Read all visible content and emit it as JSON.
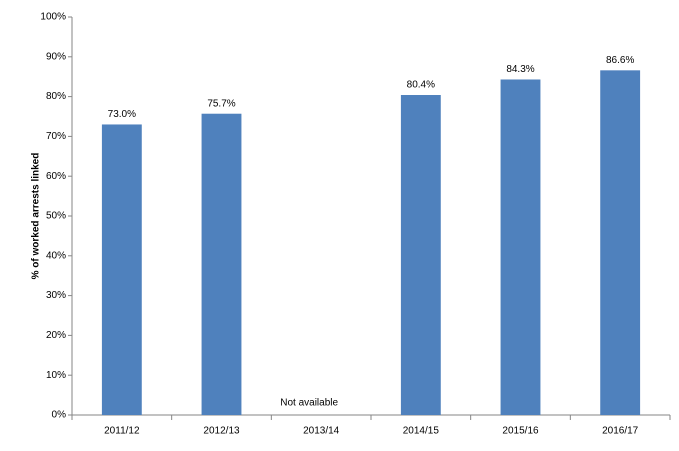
{
  "chart_data": {
    "type": "bar",
    "y_label": "% of worked arrests linked",
    "categories": [
      "2011/12",
      "2012/13",
      "2013/14",
      "2014/15",
      "2015/16",
      "2016/17"
    ],
    "values": [
      73.0,
      75.7,
      null,
      80.4,
      84.3,
      86.6
    ],
    "value_labels": [
      "73.0%",
      "75.7%",
      null,
      "80.4%",
      "84.3%",
      "86.6%"
    ],
    "annotation": "Not available",
    "color": "#4f81bd",
    "ylim": [
      0,
      100
    ],
    "yticks": [
      {
        "value": 0,
        "label": "0%"
      },
      {
        "value": 10,
        "label": "10%"
      },
      {
        "value": 20,
        "label": "20%"
      },
      {
        "value": 30,
        "label": "30%"
      },
      {
        "value": 40,
        "label": "40%"
      },
      {
        "value": 50,
        "label": "50%"
      },
      {
        "value": 60,
        "label": "60%"
      },
      {
        "value": 70,
        "label": "70%"
      },
      {
        "value": 80,
        "label": "80%"
      },
      {
        "value": 90,
        "label": "90%"
      },
      {
        "value": 100,
        "label": "100%"
      }
    ],
    "grid": false
  }
}
